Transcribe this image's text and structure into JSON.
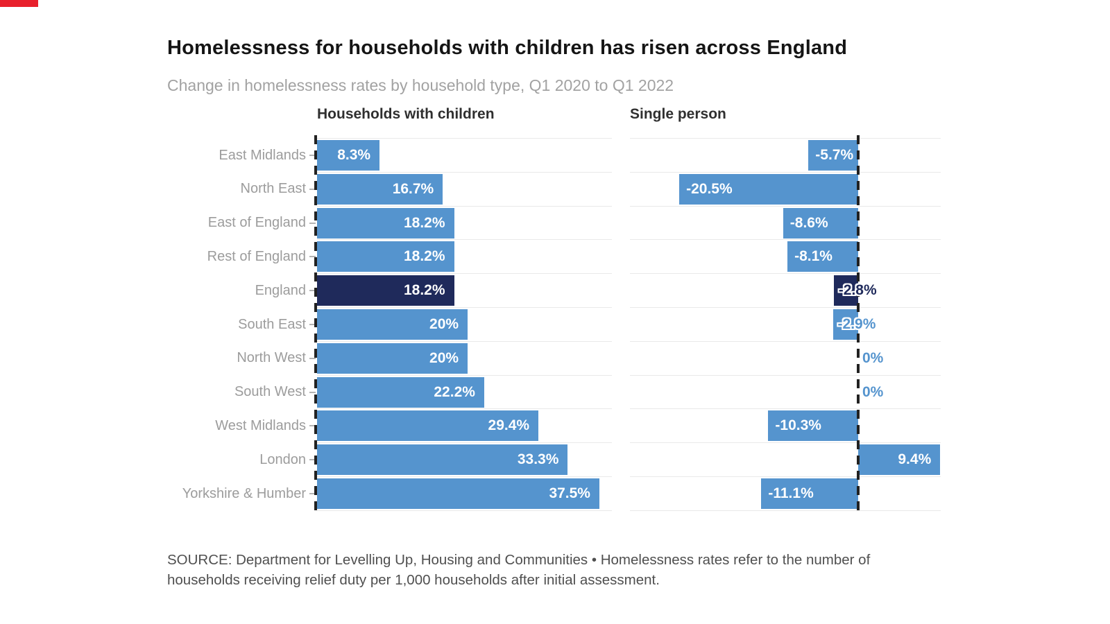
{
  "accent_color": "#E8202C",
  "header": {
    "title": "Homelessness for households with children has risen across England",
    "subtitle": "Change in homelessness rates by household type, Q1 2020 to Q1 2022"
  },
  "panels": {
    "left": "Households with children",
    "right": "Single person"
  },
  "chart_data": {
    "type": "bar",
    "orientation": "horizontal",
    "zero_line": "dashed",
    "grid": "on",
    "categories": [
      "East Midlands",
      "North East",
      "East of England",
      "Rest of England",
      "England",
      "South East",
      "North West",
      "South West",
      "West Midlands",
      "London",
      "Yorkshire & Humber"
    ],
    "series": [
      {
        "name": "Households with children",
        "values": [
          8.3,
          16.7,
          18.2,
          18.2,
          18.2,
          20,
          20,
          22.2,
          29.4,
          33.3,
          37.5
        ],
        "labels": [
          "8.3%",
          "16.7%",
          "18.2%",
          "18.2%",
          "18.2%",
          "20%",
          "20%",
          "22.2%",
          "29.4%",
          "33.3%",
          "37.5%"
        ],
        "xlim": [
          0,
          39.5
        ]
      },
      {
        "name": "Single person",
        "values": [
          -5.7,
          -20.5,
          -8.6,
          -8.1,
          -2.8,
          -2.9,
          0,
          0,
          -10.3,
          9.4,
          -11.1
        ],
        "labels": [
          "-5.7%",
          "-20.5%",
          "-8.6%",
          "-8.1%",
          "-2.8%",
          "-2.9%",
          "0%",
          "0%",
          "-10.3%",
          "9.4%",
          "-11.1%"
        ],
        "xlim": [
          -26.2,
          9.5
        ]
      }
    ],
    "highlight_category": "England",
    "colors": {
      "bar": "#5594CE",
      "highlight": "#1F2A5B",
      "gridline": "#e9e9e9",
      "zero_line": "#222222",
      "category_label": "#9c9c9c"
    }
  },
  "source": {
    "line1": "SOURCE: Department for Levelling Up, Housing and Communities • Homelessness rates refer to the number of",
    "line2": "households receiving relief duty per 1,000 households after initial assessment."
  }
}
